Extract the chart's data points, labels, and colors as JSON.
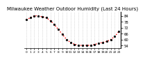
{
  "title": "Milwaukee Weather Outdoor Humidity (Last 24 Hours)",
  "title_fontsize": 5.0,
  "line_color": "#ff0000",
  "marker_color": "#000000",
  "marker_size": 1.8,
  "line_width": 1.0,
  "line_style": ":",
  "background_color": "#ffffff",
  "y_values": [
    80,
    82,
    84,
    84,
    83,
    82,
    79,
    75,
    70,
    65,
    60,
    57,
    55,
    54,
    54,
    54,
    54,
    55,
    56,
    57,
    58,
    60,
    63,
    68
  ],
  "ylim": [
    51,
    88
  ],
  "yticks": [
    54,
    60,
    66,
    72,
    78,
    84
  ],
  "ytick_fontsize": 3.8,
  "xtick_fontsize": 3.2,
  "xtick_labels": [
    "0",
    "1",
    "2",
    "3",
    "4",
    "5",
    "6",
    "7",
    "8",
    "9",
    "10",
    "11",
    "12",
    "13",
    "14",
    "15",
    "16",
    "17",
    "18",
    "19",
    "20",
    "21",
    "22",
    "23"
  ],
  "grid_color": "#bbbbbb",
  "grid_style": ":",
  "spine_color": "#000000"
}
